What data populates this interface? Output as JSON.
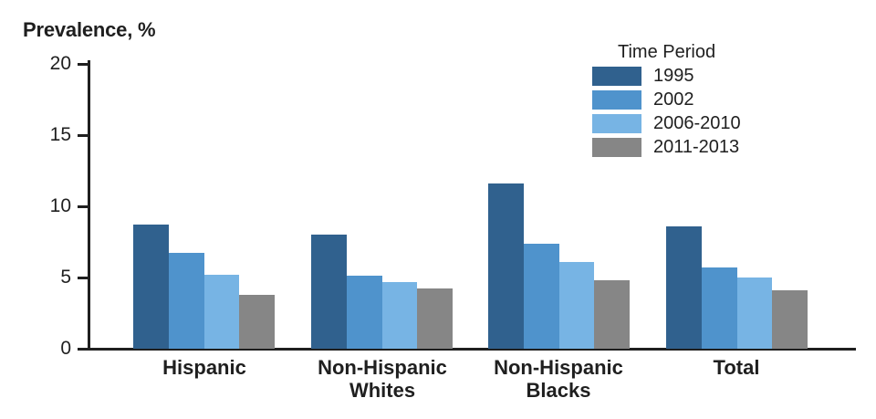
{
  "chart_data": {
    "type": "bar",
    "title": "Prevalence, %",
    "ylabel": "Prevalence, %",
    "legend_title": "Time Period",
    "legend_position": "top-right",
    "grid": false,
    "ylim": [
      0,
      20
    ],
    "yticks": [
      0,
      5,
      10,
      15,
      20
    ],
    "axis_color": "#1f1f1f",
    "categories": [
      "Hispanic",
      "Non-Hispanic Whites",
      "Non-Hispanic Blacks",
      "Total"
    ],
    "category_display_lines": [
      [
        "Hispanic"
      ],
      [
        "Non-Hispanic",
        "Whites"
      ],
      [
        "Non-Hispanic",
        "Blacks"
      ],
      [
        "Total"
      ]
    ],
    "series": [
      {
        "name": "1995",
        "color": "#30618e",
        "values": [
          8.7,
          8.0,
          11.6,
          8.6
        ]
      },
      {
        "name": "2002",
        "color": "#4f93cc",
        "values": [
          6.7,
          5.1,
          7.4,
          5.7
        ]
      },
      {
        "name": "2006-2010",
        "color": "#77b4e4",
        "values": [
          5.2,
          4.7,
          6.1,
          5.0
        ]
      },
      {
        "name": "2011-2013",
        "color": "#868686",
        "values": [
          3.8,
          4.2,
          4.8,
          4.1
        ]
      }
    ]
  }
}
